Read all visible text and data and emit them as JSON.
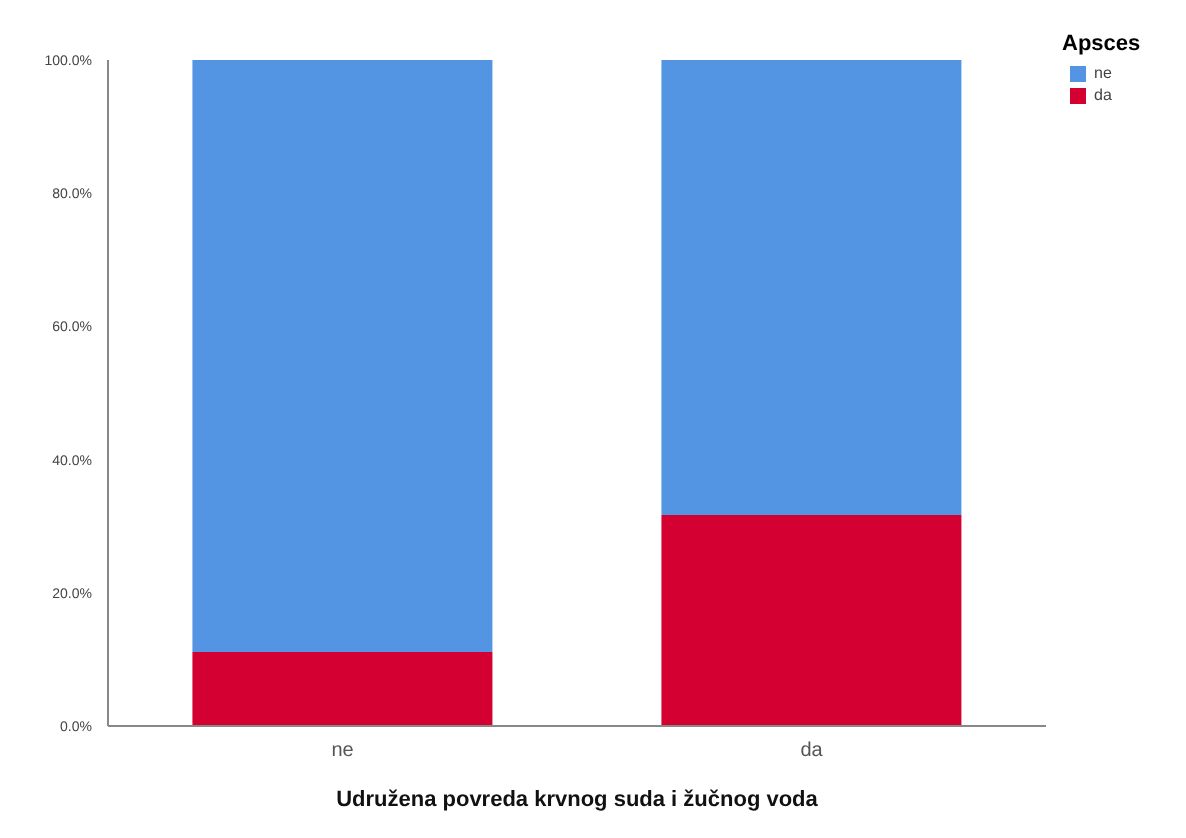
{
  "chart_data": {
    "type": "bar",
    "stacked": true,
    "xlabel": "Udružena povreda krvnog suda i žučnog voda",
    "legend_title": "Apsces",
    "legend": "top right",
    "grid": false,
    "categories": [
      "ne",
      "da"
    ],
    "series": [
      {
        "name": "da",
        "color": "#d50032",
        "values": [
          11.1,
          31.7
        ]
      },
      {
        "name": "ne",
        "color": "#5495e3",
        "values": [
          88.9,
          68.3
        ]
      }
    ],
    "ylim": [
      0,
      100
    ],
    "yticks": [
      {
        "value": 0,
        "label": "0.0%"
      },
      {
        "value": 20,
        "label": "20.0%"
      },
      {
        "value": 40,
        "label": "40.0%"
      },
      {
        "value": 60,
        "label": "60.0%"
      },
      {
        "value": 80,
        "label": "80.0%"
      },
      {
        "value": 100,
        "label": "100.0%"
      }
    ]
  }
}
